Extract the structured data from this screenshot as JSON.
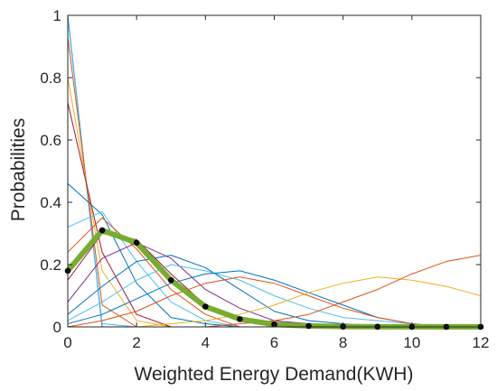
{
  "chart_data": {
    "type": "line",
    "title": "",
    "xlabel": "Weighted Energy Demand(KWH)",
    "ylabel": "Probabilities",
    "xlim": [
      0,
      12
    ],
    "ylim": [
      0,
      1
    ],
    "x_ticks": [
      0,
      2,
      4,
      6,
      8,
      10,
      12
    ],
    "y_ticks": [
      0,
      0.2,
      0.4,
      0.6,
      0.8,
      1
    ],
    "x_tick_labels": [
      "0",
      "2",
      "4",
      "6",
      "8",
      "10",
      "12"
    ],
    "y_tick_labels": [
      "0",
      "0.2",
      "0.4",
      "0.6",
      "0.8",
      "1"
    ],
    "grid": false,
    "legend": "none",
    "x": [
      0,
      1,
      2,
      3,
      4,
      5,
      6,
      7,
      8,
      9,
      10,
      11,
      12
    ],
    "highlight_series": {
      "color": "#77AC30",
      "marker_color": "#000000",
      "values": [
        0.18,
        0.31,
        0.27,
        0.15,
        0.065,
        0.025,
        0.008,
        0.003,
        0.001,
        0.0005,
        0.0002,
        0.0001,
        0.0001
      ]
    },
    "background_series": [
      {
        "color": "#0072BD",
        "values": [
          1.0,
          0.0,
          0.0,
          0.0,
          0.0,
          0.0,
          0.0,
          0.0,
          0.0,
          0.0,
          0.0,
          0.0,
          0.0
        ]
      },
      {
        "color": "#4DBEEE",
        "values": [
          0.99,
          0.01,
          0.0,
          0.0,
          0.0,
          0.0,
          0.0,
          0.0,
          0.0,
          0.0,
          0.0,
          0.0,
          0.0
        ]
      },
      {
        "color": "#D95319",
        "values": [
          0.93,
          0.07,
          0.0,
          0.0,
          0.0,
          0.0,
          0.0,
          0.0,
          0.0,
          0.0,
          0.0,
          0.0,
          0.0
        ]
      },
      {
        "color": "#EDB120",
        "values": [
          0.8,
          0.18,
          0.02,
          0.0,
          0.0,
          0.0,
          0.0,
          0.0,
          0.0,
          0.0,
          0.0,
          0.0,
          0.0
        ]
      },
      {
        "color": "#A2142F",
        "values": [
          0.72,
          0.24,
          0.04,
          0.0,
          0.0,
          0.0,
          0.0,
          0.0,
          0.0,
          0.0,
          0.0,
          0.0,
          0.0
        ]
      },
      {
        "color": "#0072BD",
        "values": [
          0.46,
          0.36,
          0.14,
          0.03,
          0.01,
          0.0,
          0.0,
          0.0,
          0.0,
          0.0,
          0.0,
          0.0,
          0.0
        ]
      },
      {
        "color": "#4DBEEE",
        "values": [
          0.32,
          0.37,
          0.21,
          0.08,
          0.02,
          0.0,
          0.0,
          0.0,
          0.0,
          0.0,
          0.0,
          0.0,
          0.0
        ]
      },
      {
        "color": "#D95319",
        "values": [
          0.24,
          0.35,
          0.25,
          0.12,
          0.04,
          0.0,
          0.0,
          0.0,
          0.0,
          0.0,
          0.0,
          0.0,
          0.0
        ]
      },
      {
        "color": "#A2142F",
        "values": [
          0.15,
          0.3,
          0.28,
          0.17,
          0.07,
          0.02,
          0.01,
          0.0,
          0.0,
          0.0,
          0.0,
          0.0,
          0.0
        ]
      },
      {
        "color": "#7E2F8E",
        "values": [
          0.08,
          0.22,
          0.27,
          0.22,
          0.12,
          0.06,
          0.02,
          0.01,
          0.0,
          0.0,
          0.0,
          0.0,
          0.0
        ]
      },
      {
        "color": "#0072BD",
        "values": [
          0.04,
          0.13,
          0.21,
          0.23,
          0.19,
          0.12,
          0.05,
          0.02,
          0.01,
          0.0,
          0.0,
          0.0,
          0.0
        ]
      },
      {
        "color": "#4DBEEE",
        "values": [
          0.02,
          0.08,
          0.15,
          0.2,
          0.18,
          0.15,
          0.1,
          0.06,
          0.03,
          0.02,
          0.01,
          0.0,
          0.0
        ]
      },
      {
        "color": "#0072BD",
        "values": [
          0.01,
          0.04,
          0.09,
          0.14,
          0.17,
          0.18,
          0.15,
          0.11,
          0.07,
          0.03,
          0.01,
          0.0,
          0.0
        ]
      },
      {
        "color": "#D95319",
        "values": [
          0.0,
          0.02,
          0.05,
          0.1,
          0.14,
          0.16,
          0.14,
          0.1,
          0.06,
          0.03,
          0.01,
          0.0,
          0.0
        ]
      },
      {
        "color": "#EDB120",
        "values": [
          0.0,
          0.0,
          0.0,
          0.01,
          0.02,
          0.04,
          0.07,
          0.11,
          0.14,
          0.16,
          0.15,
          0.13,
          0.1
        ]
      },
      {
        "color": "#D95319",
        "values": [
          0.0,
          0.0,
          0.0,
          0.0,
          0.0,
          0.01,
          0.02,
          0.04,
          0.08,
          0.12,
          0.17,
          0.21,
          0.23
        ]
      }
    ]
  }
}
